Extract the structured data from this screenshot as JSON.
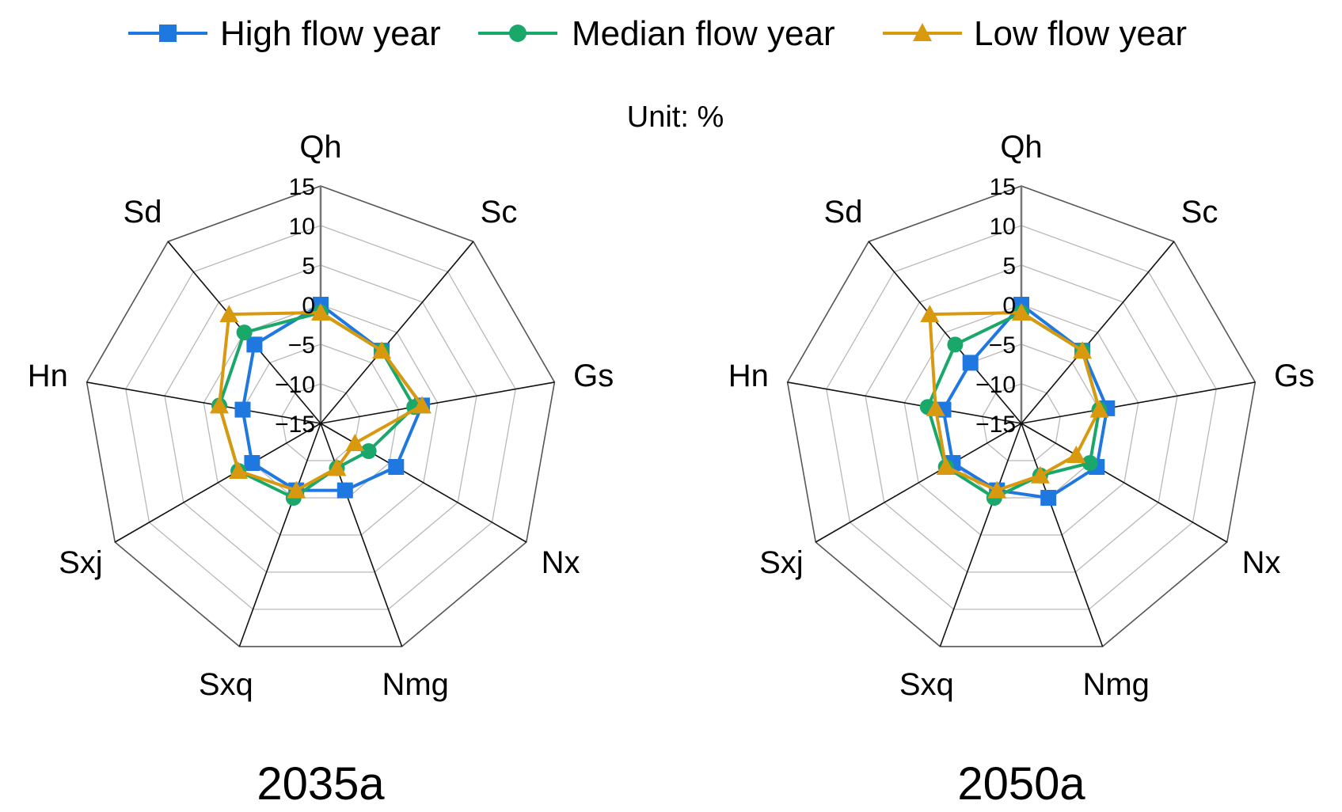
{
  "legend": [
    {
      "name": "High flow year",
      "color": "#1f78e0",
      "marker": "square"
    },
    {
      "name": "Median flow year",
      "color": "#1aa86a",
      "marker": "circle"
    },
    {
      "name": "Low flow year",
      "color": "#d9990f",
      "marker": "triangle"
    }
  ],
  "unit_label": "Unit: %",
  "chart_data": [
    {
      "type": "radar",
      "title": "2035a",
      "axes": [
        "Qh",
        "Sc",
        "Gs",
        "Nx",
        "Nmg",
        "Sxq",
        "Sxj",
        "Hn",
        "Sd"
      ],
      "rlim": [
        -15,
        15
      ],
      "ticks": [
        15,
        10,
        5,
        0,
        -5,
        -10,
        -15
      ],
      "tick_labels": [
        "15",
        "10",
        "5",
        "0",
        "−5",
        "−10",
        "−15"
      ],
      "series": [
        {
          "name": "High flow year",
          "values": [
            0,
            -3,
            -2,
            -4,
            -6,
            -6,
            -5,
            -5,
            -2
          ]
        },
        {
          "name": "Median flow year",
          "values": [
            -1,
            -3,
            -3,
            -8,
            -9,
            -5,
            -3,
            -2,
            0
          ]
        },
        {
          "name": "Low flow year",
          "values": [
            -1,
            -3,
            -2,
            -10,
            -9,
            -6,
            -3,
            -2,
            3
          ]
        }
      ]
    },
    {
      "type": "radar",
      "title": "2050a",
      "axes": [
        "Qh",
        "Sc",
        "Gs",
        "Nx",
        "Nmg",
        "Sxq",
        "Sxj",
        "Hn",
        "Sd"
      ],
      "rlim": [
        -15,
        15
      ],
      "ticks": [
        15,
        10,
        5,
        0,
        -5,
        -10,
        -15
      ],
      "tick_labels": [
        "15",
        "10",
        "5",
        "0",
        "−5",
        "−10",
        "−15"
      ],
      "series": [
        {
          "name": "High flow year",
          "values": [
            0,
            -3,
            -4,
            -4,
            -5,
            -6,
            -5,
            -5,
            -5
          ]
        },
        {
          "name": "Median flow year",
          "values": [
            -1,
            -3,
            -5,
            -5,
            -8,
            -5,
            -4,
            -3,
            -2
          ]
        },
        {
          "name": "Low flow year",
          "values": [
            -1,
            -3,
            -5,
            -7,
            -8,
            -6,
            -4,
            -4,
            3
          ]
        }
      ]
    }
  ]
}
